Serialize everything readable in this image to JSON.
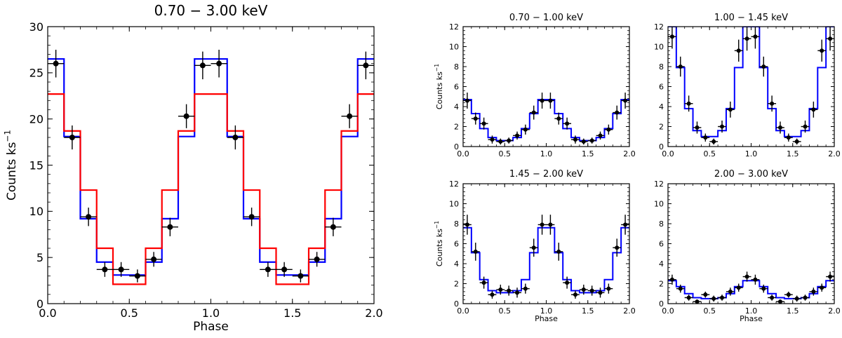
{
  "chart_data": [
    {
      "type": "step",
      "title": "0.70 − 3.00 keV",
      "xlabel": "Phase",
      "ylabel": "Counts ks",
      "ylabel_sup": "−1",
      "xlim": [
        0,
        2
      ],
      "ylim": [
        0,
        30
      ],
      "xticks": [
        0,
        0.5,
        1,
        1.5,
        2
      ],
      "xtick_labels": [
        "0.0",
        "0.5",
        "1.0",
        "1.5",
        "2.0"
      ],
      "yticks": [
        0,
        5,
        10,
        15,
        20,
        25,
        30
      ],
      "ytick_labels": [
        "0",
        "5",
        "10",
        "15",
        "20",
        "25",
        "30"
      ],
      "x": [
        0.05,
        0.15,
        0.25,
        0.35,
        0.45,
        0.55,
        0.65,
        0.75,
        0.85,
        0.95,
        1.05,
        1.15,
        1.25,
        1.35,
        1.45,
        1.55,
        1.65,
        1.75,
        1.85,
        1.95
      ],
      "series": [
        {
          "name": "data",
          "kind": "points",
          "color": "#000000",
          "values": [
            26.0,
            18.0,
            9.4,
            3.7,
            3.7,
            3.0,
            4.8,
            8.3,
            20.3,
            25.8,
            26.0,
            18.0,
            9.4,
            3.7,
            3.7,
            3.0,
            4.8,
            8.3,
            20.3,
            25.8
          ],
          "yerr": [
            1.5,
            1.3,
            1.0,
            0.8,
            0.8,
            0.7,
            0.8,
            1.0,
            1.3,
            1.5,
            1.5,
            1.3,
            1.0,
            0.8,
            0.8,
            0.7,
            0.8,
            1.0,
            1.3,
            1.5
          ]
        },
        {
          "name": "blue model",
          "kind": "step",
          "color": "#0000ff",
          "values": [
            26.5,
            18.1,
            9.2,
            4.5,
            3.1,
            3.1,
            4.5,
            9.2,
            18.1,
            26.5,
            26.5,
            18.1,
            9.2,
            4.5,
            3.1,
            3.1,
            4.5,
            9.2,
            18.1,
            26.5
          ]
        },
        {
          "name": "red model",
          "kind": "step",
          "color": "#ff0000",
          "values": [
            22.7,
            18.7,
            12.3,
            6.0,
            2.1,
            2.1,
            6.0,
            12.3,
            18.7,
            22.7,
            22.7,
            18.7,
            12.3,
            6.0,
            2.1,
            2.1,
            6.0,
            12.3,
            18.7,
            22.7
          ]
        }
      ]
    },
    {
      "type": "step",
      "title": "0.70 − 1.00 keV",
      "xlabel": "",
      "ylabel": "Counts ks",
      "ylabel_sup": "−1",
      "xlim": [
        0,
        2
      ],
      "ylim": [
        0,
        12
      ],
      "xticks": [
        0,
        0.5,
        1,
        1.5,
        2
      ],
      "xtick_labels": [
        "0.0",
        "0.5",
        "1.0",
        "1.5",
        "2.0"
      ],
      "yticks": [
        0,
        2,
        4,
        6,
        8,
        10,
        12
      ],
      "ytick_labels": [
        "0",
        "2",
        "4",
        "6",
        "8",
        "10",
        "12"
      ],
      "x": [
        0.05,
        0.15,
        0.25,
        0.35,
        0.45,
        0.55,
        0.65,
        0.75,
        0.85,
        0.95,
        1.05,
        1.15,
        1.25,
        1.35,
        1.45,
        1.55,
        1.65,
        1.75,
        1.85,
        1.95
      ],
      "series": [
        {
          "name": "data",
          "kind": "points",
          "color": "#000000",
          "values": [
            4.6,
            2.8,
            2.3,
            0.7,
            0.5,
            0.6,
            1.1,
            1.7,
            3.4,
            4.6,
            4.6,
            2.8,
            2.3,
            0.7,
            0.5,
            0.6,
            1.1,
            1.7,
            3.4,
            4.6
          ],
          "yerr": [
            0.8,
            0.6,
            0.6,
            0.4,
            0.3,
            0.3,
            0.4,
            0.5,
            0.7,
            0.8,
            0.8,
            0.6,
            0.6,
            0.4,
            0.3,
            0.3,
            0.4,
            0.5,
            0.7,
            0.8
          ]
        },
        {
          "name": "blue model",
          "kind": "step",
          "color": "#0000ff",
          "values": [
            4.7,
            3.3,
            1.8,
            0.9,
            0.6,
            0.6,
            0.9,
            1.8,
            3.3,
            4.7,
            4.7,
            3.3,
            1.8,
            0.9,
            0.6,
            0.6,
            0.9,
            1.8,
            3.3,
            4.7
          ]
        }
      ]
    },
    {
      "type": "step",
      "title": "1.00 − 1.45 keV",
      "xlabel": "",
      "ylabel": "",
      "ylabel_sup": "",
      "xlim": [
        0,
        2
      ],
      "ylim": [
        0,
        12
      ],
      "xticks": [
        0,
        0.5,
        1,
        1.5,
        2
      ],
      "xtick_labels": [
        "0.0",
        "0.5",
        "1.0",
        "1.5",
        "2.0"
      ],
      "yticks": [
        0,
        2,
        4,
        6,
        8,
        10,
        12
      ],
      "ytick_labels": [
        "0",
        "2",
        "4",
        "6",
        "8",
        "10",
        "12"
      ],
      "x": [
        0.05,
        0.15,
        0.25,
        0.35,
        0.45,
        0.55,
        0.65,
        0.75,
        0.85,
        0.95,
        1.05,
        1.15,
        1.25,
        1.35,
        1.45,
        1.55,
        1.65,
        1.75,
        1.85,
        1.95
      ],
      "series": [
        {
          "name": "data",
          "kind": "points",
          "color": "#000000",
          "values": [
            11.0,
            8.0,
            4.3,
            1.9,
            0.9,
            0.5,
            2.0,
            3.7,
            9.6,
            10.8,
            11.0,
            8.0,
            4.3,
            1.9,
            0.9,
            0.5,
            2.0,
            3.7,
            9.6,
            10.8
          ],
          "yerr": [
            1.2,
            1.0,
            0.8,
            0.6,
            0.4,
            0.3,
            0.6,
            0.8,
            1.1,
            1.2,
            1.2,
            1.0,
            0.8,
            0.6,
            0.4,
            0.3,
            0.6,
            0.8,
            1.1,
            1.2
          ]
        },
        {
          "name": "blue model",
          "kind": "step",
          "color": "#0000ff",
          "values": [
            12.0,
            7.9,
            3.8,
            1.6,
            1.0,
            1.0,
            1.6,
            3.8,
            7.9,
            12.0,
            12.0,
            7.9,
            3.8,
            1.6,
            1.0,
            1.0,
            1.6,
            3.8,
            7.9,
            12.0
          ]
        }
      ]
    },
    {
      "type": "step",
      "title": "1.45 − 2.00 keV",
      "xlabel": "Phase",
      "ylabel": "Counts ks",
      "ylabel_sup": "−1",
      "xlim": [
        0,
        2
      ],
      "ylim": [
        0,
        12
      ],
      "xticks": [
        0,
        0.5,
        1,
        1.5,
        2
      ],
      "xtick_labels": [
        "0.0",
        "0.5",
        "1.0",
        "1.5",
        "2.0"
      ],
      "yticks": [
        0,
        2,
        4,
        6,
        8,
        10,
        12
      ],
      "ytick_labels": [
        "0",
        "2",
        "4",
        "6",
        "8",
        "10",
        "12"
      ],
      "x": [
        0.05,
        0.15,
        0.25,
        0.35,
        0.45,
        0.55,
        0.65,
        0.75,
        0.85,
        0.95,
        1.05,
        1.15,
        1.25,
        1.35,
        1.45,
        1.55,
        1.65,
        1.75,
        1.85,
        1.95
      ],
      "series": [
        {
          "name": "data",
          "kind": "points",
          "color": "#000000",
          "values": [
            7.9,
            5.2,
            2.1,
            0.9,
            1.4,
            1.3,
            1.1,
            1.5,
            5.6,
            7.9,
            7.9,
            5.2,
            2.1,
            0.9,
            1.4,
            1.3,
            1.1,
            1.5,
            5.6,
            7.9
          ],
          "yerr": [
            1.0,
            0.9,
            0.6,
            0.4,
            0.5,
            0.5,
            0.5,
            0.5,
            0.9,
            1.0,
            1.0,
            0.9,
            0.6,
            0.4,
            0.5,
            0.5,
            0.5,
            0.5,
            0.9,
            1.0
          ]
        },
        {
          "name": "blue model",
          "kind": "step",
          "color": "#0000ff",
          "values": [
            7.6,
            5.1,
            2.4,
            1.3,
            1.1,
            1.1,
            1.3,
            2.4,
            5.1,
            7.6,
            7.6,
            5.1,
            2.4,
            1.3,
            1.1,
            1.1,
            1.3,
            2.4,
            5.1,
            7.6
          ]
        }
      ]
    },
    {
      "type": "step",
      "title": "2.00 − 3.00 keV",
      "xlabel": "Phase",
      "ylabel": "",
      "ylabel_sup": "",
      "xlim": [
        0,
        2
      ],
      "ylim": [
        0,
        12
      ],
      "xticks": [
        0,
        0.5,
        1,
        1.5,
        2
      ],
      "xtick_labels": [
        "0.0",
        "0.5",
        "1.0",
        "1.5",
        "2.0"
      ],
      "yticks": [
        0,
        2,
        4,
        6,
        8,
        10,
        12
      ],
      "ytick_labels": [
        "0",
        "2",
        "4",
        "6",
        "8",
        "10",
        "12"
      ],
      "x": [
        0.05,
        0.15,
        0.25,
        0.35,
        0.45,
        0.55,
        0.65,
        0.75,
        0.85,
        0.95,
        1.05,
        1.15,
        1.25,
        1.35,
        1.45,
        1.55,
        1.65,
        1.75,
        1.85,
        1.95
      ],
      "series": [
        {
          "name": "data",
          "kind": "points",
          "color": "#000000",
          "values": [
            2.4,
            1.5,
            0.6,
            0.2,
            0.9,
            0.5,
            0.6,
            1.2,
            1.6,
            2.7,
            2.4,
            1.5,
            0.6,
            0.2,
            0.9,
            0.5,
            0.6,
            1.2,
            1.6,
            2.7
          ],
          "yerr": [
            0.5,
            0.4,
            0.3,
            0.2,
            0.3,
            0.3,
            0.3,
            0.4,
            0.4,
            0.5,
            0.5,
            0.4,
            0.3,
            0.2,
            0.3,
            0.3,
            0.3,
            0.4,
            0.4,
            0.5
          ]
        },
        {
          "name": "blue model",
          "kind": "step",
          "color": "#0000ff",
          "values": [
            2.3,
            1.7,
            1.0,
            0.6,
            0.5,
            0.5,
            0.6,
            1.0,
            1.7,
            2.3,
            2.3,
            1.7,
            1.0,
            0.6,
            0.5,
            0.5,
            0.6,
            1.0,
            1.7,
            2.3
          ]
        }
      ]
    }
  ]
}
